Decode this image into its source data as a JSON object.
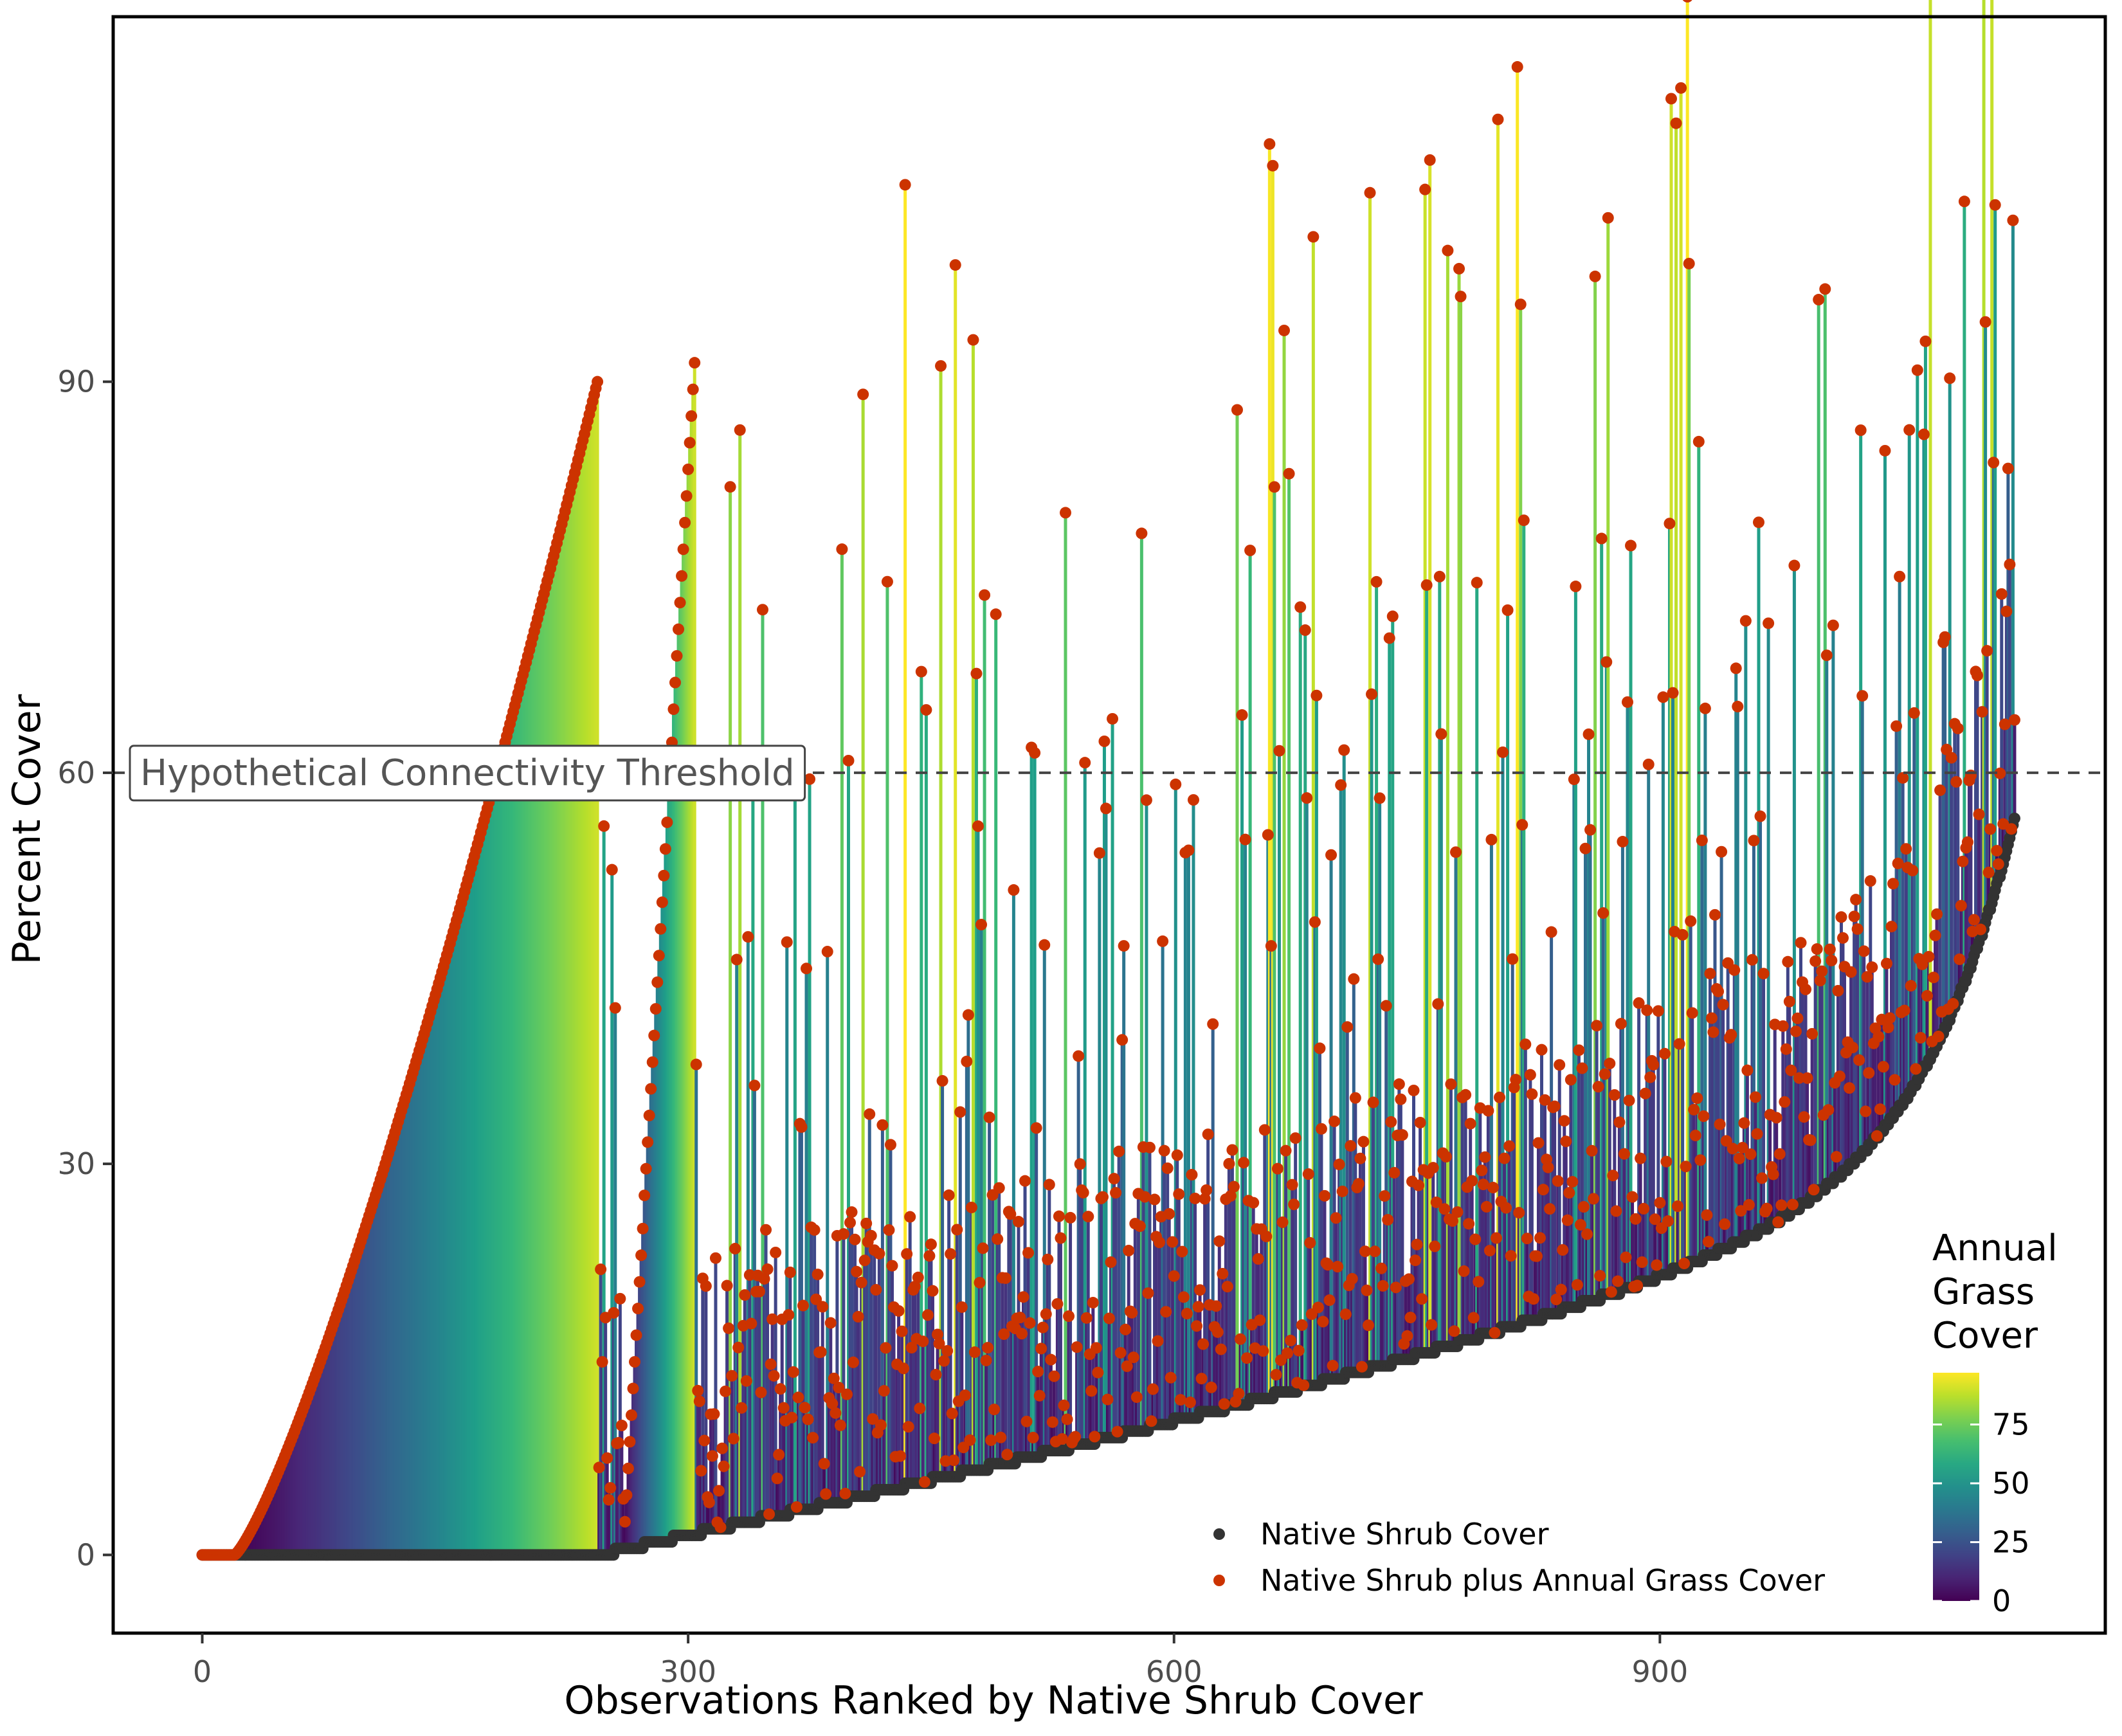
{
  "chart_data": {
    "type": "scatter",
    "title": "",
    "xlabel": "Observations Ranked by Native Shrub Cover",
    "ylabel": "Percent Cover",
    "xlim": [
      -55,
      1175
    ],
    "ylim": [
      -6,
      118
    ],
    "x_ticks": [
      0,
      300,
      600,
      900
    ],
    "y_ticks": [
      0,
      30,
      60,
      90
    ],
    "grid": false,
    "n_observations": 1120,
    "reference_line": {
      "y": 60,
      "style": "dashed",
      "label": "Hypothetical Connectivity Threshold"
    },
    "series": [
      {
        "name": "Native Shrub Cover",
        "color": "#333333",
        "description": "ranked native shrub cover, 0 for first ~245 observations, rising to ~57 at the last observation"
      },
      {
        "name": "Native Shrub plus Annual Grass Cover",
        "color": "#cc3300",
        "description": "shrub cover plus annual grass cover; many spikes between 30 and 115"
      }
    ],
    "segments_color_by": "annual grass cover",
    "colorbar": {
      "title": "Annual Grass Cover",
      "range": [
        0,
        97
      ],
      "ticks": [
        0,
        25,
        50,
        75
      ],
      "palette": "viridis"
    },
    "legend": {
      "placement": "bottom-right"
    }
  }
}
